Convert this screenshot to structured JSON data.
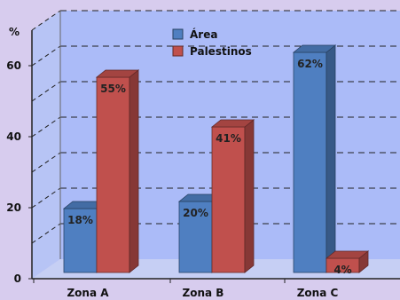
{
  "chart_data": {
    "type": "bar",
    "title": "",
    "xlabel": "",
    "ylabel": "%",
    "ylim": [
      0,
      70
    ],
    "yticks": [
      0,
      20,
      40,
      60
    ],
    "grid": true,
    "legend_position": "top-center",
    "categories": [
      "Zona A",
      "Zona B",
      "Zona C"
    ],
    "series": [
      {
        "name": "Área",
        "color": "#4f7fc1",
        "values": [
          18,
          20,
          62
        ],
        "labels": [
          "18%",
          "20%",
          "62%"
        ]
      },
      {
        "name": "Palestinos",
        "color": "#c0504d",
        "values": [
          55,
          41,
          4
        ],
        "labels": [
          "55%",
          "41%",
          "4%"
        ]
      }
    ]
  }
}
